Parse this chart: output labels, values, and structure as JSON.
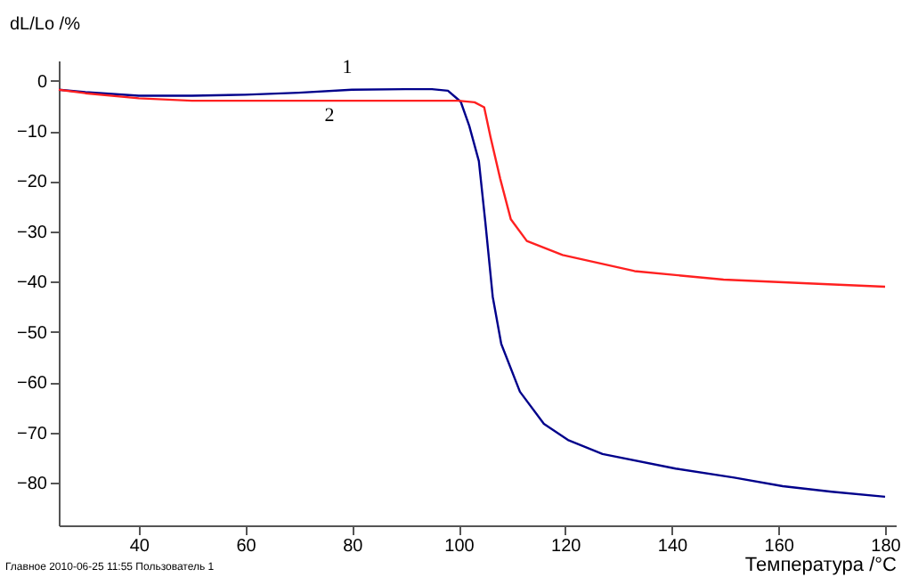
{
  "chart_data": {
    "type": "line",
    "xlabel": "Температура /°C",
    "ylabel": "dL/Lo /%",
    "xlim": [
      25,
      182
    ],
    "ylim": [
      -88.5,
      4
    ],
    "xticks": [
      40,
      60,
      80,
      100,
      120,
      140,
      160,
      180
    ],
    "yticks": [
      0,
      -10,
      -20,
      -30,
      -40,
      -50,
      -60,
      -70,
      -80
    ],
    "grid": false,
    "line_style": "solid",
    "marker": "none",
    "series": [
      {
        "name": "1",
        "color": "#00008b",
        "x": [
          25,
          30,
          40,
          50,
          60,
          70,
          80,
          90,
          95,
          98,
          100.4,
          102,
          103.8,
          105,
          106.4,
          108,
          111.5,
          116,
          120.5,
          127,
          140.7,
          151.7,
          160.8,
          170,
          180
        ],
        "values": [
          -1.8,
          -2.3,
          -3,
          -3,
          -2.8,
          -2.4,
          -1.8,
          -1.7,
          -1.7,
          -2,
          -4.2,
          -9,
          -16,
          -28,
          -43,
          -52.4,
          -61.9,
          -68.3,
          -71.5,
          -74.3,
          -77.2,
          -79,
          -80.7,
          -81.8,
          -82.8
        ]
      },
      {
        "name": "2",
        "color": "#ff2020",
        "x": [
          25,
          30,
          40,
          50,
          60,
          70,
          80,
          90,
          100,
          103,
          104.8,
          106,
          107.8,
          109.8,
          112.8,
          119.5,
          133,
          149.7,
          166.5,
          180
        ],
        "values": [
          -1.8,
          -2.5,
          -3.5,
          -4,
          -4,
          -4,
          -4,
          -4,
          -4,
          -4.3,
          -5.3,
          -11.3,
          -19.5,
          -27.6,
          -31.9,
          -34.7,
          -37.9,
          -39.6,
          -40.4,
          -41
        ]
      }
    ],
    "legend": false,
    "annotations": [
      "Главное   2010-06-25 11:55   Пользователь 1"
    ]
  }
}
